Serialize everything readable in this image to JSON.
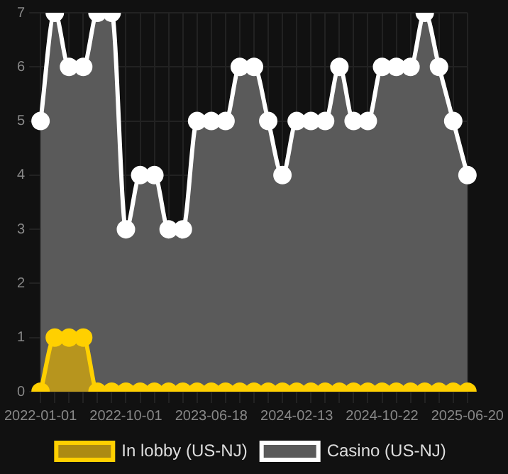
{
  "chart_data": {
    "type": "area",
    "categories": [
      "2022-01-01",
      null,
      null,
      null,
      null,
      null,
      "2022-10-01",
      null,
      null,
      null,
      null,
      null,
      "2023-06-18",
      null,
      null,
      null,
      null,
      null,
      "2024-02-13",
      null,
      null,
      null,
      null,
      null,
      "2024-10-22",
      null,
      null,
      null,
      null,
      null,
      "2025-06-20"
    ],
    "series": [
      {
        "name": "In lobby (US-NJ)",
        "color": "#ffd000",
        "values": [
          0,
          1,
          1,
          1,
          0,
          0,
          0,
          0,
          0,
          0,
          0,
          0,
          0,
          0,
          0,
          0,
          0,
          0,
          0,
          0,
          0,
          0,
          0,
          0,
          0,
          0,
          0,
          0,
          0,
          0,
          0
        ]
      },
      {
        "name": "Casino (US-NJ)",
        "color": "#ffffff",
        "values": [
          5,
          7,
          6,
          6,
          7,
          7,
          3,
          4,
          4,
          3,
          3,
          5,
          5,
          5,
          6,
          6,
          5,
          4,
          5,
          5,
          5,
          6,
          5,
          5,
          6,
          6,
          6,
          7,
          6,
          5,
          4
        ]
      }
    ],
    "ylim": [
      0,
      7
    ],
    "yticks": [
      0,
      1,
      2,
      3,
      4,
      5,
      6,
      7
    ],
    "grid": true,
    "legend": "bottom",
    "marker": "circle"
  }
}
